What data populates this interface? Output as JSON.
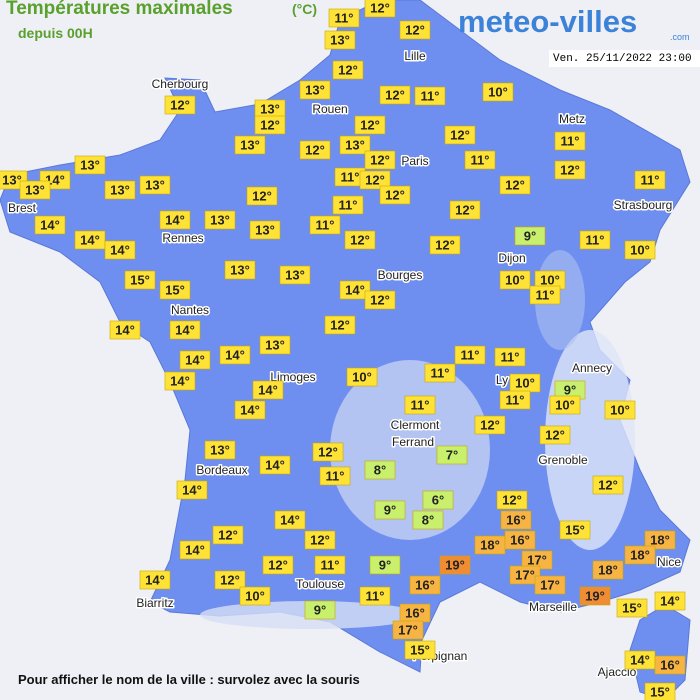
{
  "header": {
    "title": "Températures maximales",
    "unit": "(°C)",
    "subtitle": "depuis 00H",
    "logo": "meteo-villes",
    "logo_suffix": ".com",
    "timestamp": "Ven. 25/11/2022 23:00"
  },
  "cities": [
    "Cherbourg",
    "Rouen",
    "Lille",
    "Paris",
    "Metz",
    "Strasbourg",
    "Brest",
    "Rennes",
    "Dijon",
    "Bourges",
    "Nantes",
    "Annecy",
    "Limoges",
    "Ly",
    "Clermont",
    "Ferrand",
    "Grenoble",
    "Bordeaux",
    "Nice",
    "Toulouse",
    "Marseille",
    "Biarritz",
    "Perpignan",
    "Ajaccio"
  ],
  "temperatures": [
    "12°",
    "11°",
    "13°",
    "12°",
    "12°",
    "13°",
    "12°",
    "11°",
    "10°",
    "12°",
    "13°",
    "12°",
    "12°",
    "13°",
    "13°",
    "12°",
    "11°",
    "12°",
    "12°",
    "11°",
    "12°",
    "13°",
    "13°",
    "14°",
    "13°",
    "13°",
    "13°",
    "11°",
    "12°",
    "12°",
    "11°",
    "12°",
    "12°",
    "11°",
    "14°",
    "14°",
    "13°",
    "12°",
    "13°",
    "11°",
    "9°",
    "14°",
    "14°",
    "12°",
    "12°",
    "11°",
    "10°",
    "13°",
    "13°",
    "15°",
    "15°",
    "10°",
    "10°",
    "14°",
    "12°",
    "11°",
    "14°",
    "14°",
    "12°",
    "13°",
    "14°",
    "14°",
    "11°",
    "11°",
    "14°",
    "10°",
    "11°",
    "10°",
    "9°",
    "14°",
    "11°",
    "10°",
    "10°",
    "14°",
    "11°",
    "12°",
    "12°",
    "13°",
    "7°",
    "12°",
    "14°",
    "8°",
    "11°",
    "12°",
    "14°",
    "6°",
    "12°",
    "9°",
    "8°",
    "14°",
    "16°",
    "15°",
    "12°",
    "12°",
    "18°",
    "16°",
    "18°",
    "14°",
    "18°",
    "17°",
    "12°",
    "11°",
    "9°",
    "19°",
    "17°",
    "18°",
    "14°",
    "12°",
    "16°",
    "17°",
    "10°",
    "11°",
    "19°",
    "15°",
    "14°",
    "9°",
    "16°",
    "17°",
    "15°",
    "14°",
    "16°",
    "15°"
  ],
  "footer": "Pour afficher le nom de la ville : survolez avec la souris"
}
